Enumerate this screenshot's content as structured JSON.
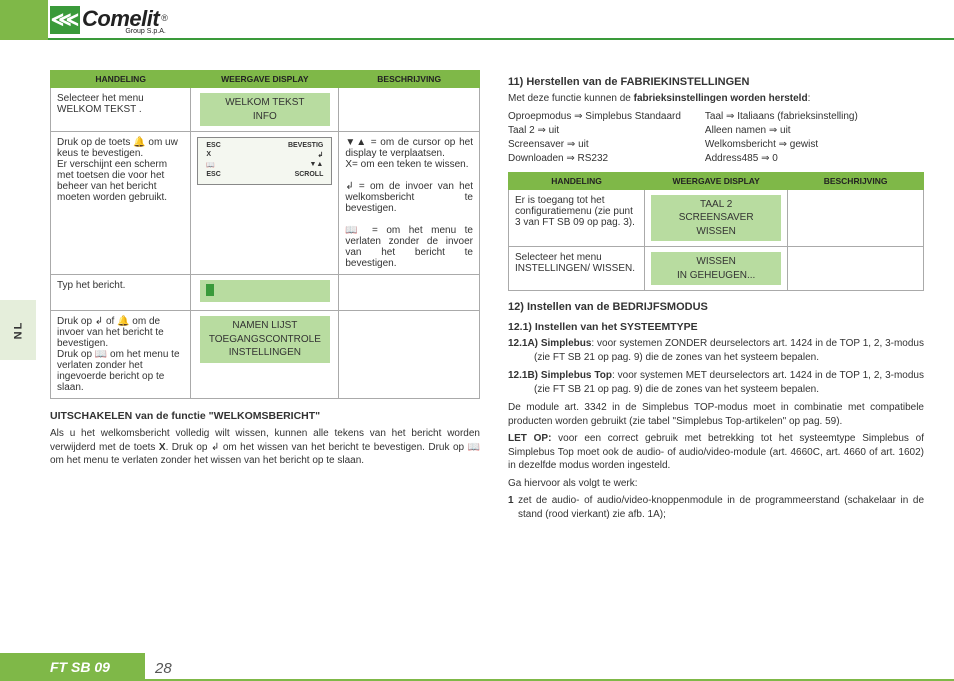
{
  "brand": {
    "name": "Comelit",
    "sub": "Group S.p.A.",
    "reg": "®"
  },
  "side_tab": "NL",
  "footer": {
    "doc": "FT SB 09",
    "page": "28"
  },
  "table_headers": {
    "action": "HANDELING",
    "display": "WEERGAVE DISPLAY",
    "desc": "BESCHRIJVING"
  },
  "left_table": {
    "r1": {
      "action": "Selecteer het menu WELKOM TEKST .",
      "display": "WELKOM TEKST\nINFO"
    },
    "r2": {
      "action": "Druk op de toets 🔔 om uw keus te bevestigen.\nEr verschijnt een scherm met toetsen die voor het beheer van het bericht moeten worden gebruikt.",
      "chip": {
        "tl": "ESC",
        "tr": "BEVESTIG",
        "bl": "ESC",
        "br": "SCROLL",
        "x": "X",
        "sym1": "↲",
        "sym2": "📖",
        "sym3": "▼▲"
      },
      "desc": "▼▲ = om de cursor op het display te verplaatsen.\nX= om een teken te wissen.\n\n↲ = om de invoer van het welkomsbericht te bevestigen.\n\n📖 = om het menu te verlaten zonder de invoer van het bericht te bevestigen."
    },
    "r3": {
      "action": "Typ het bericht."
    },
    "r4": {
      "action": "Druk op ↲ of 🔔 om de invoer van het bericht te bevestigen.\nDruk op 📖 om het menu te verlaten zonder het ingevoerde bericht op te slaan.",
      "display": "NAMEN LIJST\nTOEGANGSCONTROLE\nINSTELLINGEN"
    }
  },
  "disable": {
    "title": "UITSCHAKELEN van de functie \"WELKOMSBERICHT\"",
    "body1": "Als u het welkomsbericht volledig wilt wissen, kunnen alle tekens van het bericht worden verwijderd met de toets ",
    "body2": ". Druk op ",
    "body3": " om het wissen van het bericht te bevestigen. Druk op ",
    "body4": " om het menu te verlaten zonder het wissen van het bericht op te slaan.",
    "key_x": "X",
    "key_enter": "↲",
    "key_book": "📖"
  },
  "sec11": {
    "title": "11) Herstellen van de FABRIEKINSTELLINGEN",
    "intro": "Met deze functie kunnen de fabrieksinstellingen worden hersteld:",
    "defaults_l": [
      "Oproepmodus ⇒ Simplebus Standaard",
      "Taal 2 ⇒ uit",
      "Screensaver ⇒ uit",
      "Downloaden ⇒ RS232"
    ],
    "defaults_r": [
      "Taal ⇒ Italiaans (fabrieksinstelling)",
      "Alleen namen ⇒ uit",
      "Welkomsbericht ⇒ gewist",
      "Address485 ⇒ 0"
    ],
    "r1": {
      "action": "Er is toegang tot het configuratiemenu (zie punt 3 van FT SB 09 op pag. 3).",
      "display": "TAAL 2\nSCREENSAVER\nWISSEN"
    },
    "r2": {
      "action": "Selecteer het menu INSTELLINGEN/ WISSEN.",
      "display": "WISSEN\nIN GEHEUGEN..."
    }
  },
  "sec12": {
    "title": "12) Instellen van de BEDRIJFSMODUS",
    "sub1": "12.1) Instellen van het SYSTEEMTYPE",
    "a_label": "12.1A) Simplebus",
    "a_body": ": voor systemen ZONDER deurselectors art. 1424 in de TOP 1, 2, 3-modus (zie FT SB 21 op pag. 9) die de zones van het systeem bepalen.",
    "b_label": "12.1B) Simplebus Top",
    "b_body": ": voor systemen MET deurselectors art. 1424 in de TOP 1, 2, 3-modus (zie FT SB 21 op pag. 9) die de zones van het systeem bepalen.",
    "p1": "De module art. 3342 in de Simplebus TOP-modus moet in combinatie met compatibele producten worden gebruikt (zie tabel \"Simplebus Top-artikelen\" op pag. 59).",
    "p2_lead": "LET OP:",
    "p2": " voor een correct gebruik met betrekking tot het systeemtype Simplebus of Simplebus Top moet ook de audio- of audio/video-module (art. 4660C, art. 4660 of art. 1602) in dezelfde modus worden ingesteld.",
    "p3": "Ga hiervoor als volgt te werk:",
    "step1_n": "1",
    "step1": " zet de audio- of audio/video-knoppenmodule in de programmeerstand (schakelaar in de stand (rood vierkant) zie afb. 1A);"
  }
}
